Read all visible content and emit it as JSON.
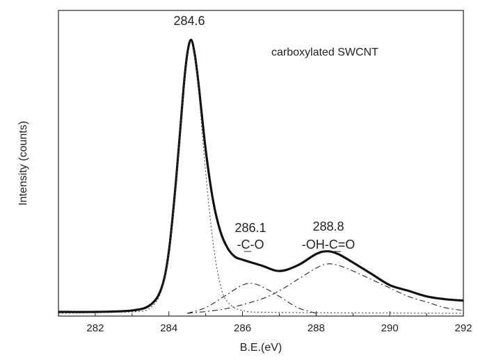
{
  "chart_data": {
    "type": "line",
    "title": "",
    "xlabel": "B.E.(eV)",
    "ylabel": "Intensity (counts)",
    "xlim": [
      281,
      292
    ],
    "ylim": [
      0,
      1.0
    ],
    "x_ticks": [
      282,
      284,
      286,
      288,
      290,
      292
    ],
    "x_tick_labels": [
      "282",
      "284",
      "286",
      "288",
      "290",
      "292"
    ],
    "y_ticks_shown": false,
    "grid": false,
    "sample_label": "carboxylated SWCNT",
    "annotations": [
      {
        "line1": "284.6",
        "line2": ""
      },
      {
        "line1": "286.1",
        "line2": "-C-O"
      },
      {
        "line1": "288.8",
        "line2": "-OH-C=O"
      }
    ],
    "series": [
      {
        "style": "solid-thick",
        "x": [
          281.0,
          282.0,
          283.0,
          283.5,
          283.8,
          284.0,
          284.2,
          284.4,
          284.5,
          284.6,
          284.7,
          284.8,
          285.0,
          285.2,
          285.4,
          285.6,
          285.8,
          286.0,
          286.5,
          287.0,
          287.5,
          288.0,
          288.3,
          288.6,
          289.0,
          289.5,
          290.0,
          290.5,
          291.0,
          291.5,
          292.0
        ],
        "y": [
          0.005,
          0.005,
          0.01,
          0.03,
          0.09,
          0.22,
          0.48,
          0.8,
          0.92,
          0.97,
          0.92,
          0.82,
          0.58,
          0.4,
          0.29,
          0.23,
          0.2,
          0.19,
          0.17,
          0.15,
          0.17,
          0.21,
          0.22,
          0.21,
          0.18,
          0.14,
          0.1,
          0.08,
          0.06,
          0.05,
          0.045
        ]
      },
      {
        "style": "dotted",
        "x": [
          281.0,
          283.0,
          283.5,
          283.8,
          284.0,
          284.2,
          284.4,
          284.5,
          284.6,
          284.7,
          284.8,
          285.0,
          285.2,
          285.4,
          285.6,
          286.0,
          287.0,
          292.0
        ],
        "y": [
          0.0,
          0.005,
          0.02,
          0.08,
          0.21,
          0.47,
          0.79,
          0.91,
          0.96,
          0.91,
          0.8,
          0.5,
          0.25,
          0.1,
          0.04,
          0.01,
          0.003,
          0.0
        ]
      },
      {
        "style": "dash-dot",
        "x": [
          284.5,
          285.0,
          285.5,
          286.0,
          286.3,
          286.6,
          287.0,
          287.5,
          288.0
        ],
        "y": [
          0.0,
          0.02,
          0.06,
          0.1,
          0.105,
          0.09,
          0.06,
          0.02,
          0.0
        ]
      },
      {
        "style": "dash-dot",
        "x": [
          284.5,
          285.5,
          286.5,
          287.0,
          287.5,
          288.0,
          288.3,
          288.6,
          289.0,
          289.5,
          290.0,
          290.5,
          291.0,
          291.5,
          292.0
        ],
        "y": [
          0.0,
          0.015,
          0.05,
          0.08,
          0.12,
          0.16,
          0.175,
          0.17,
          0.15,
          0.12,
          0.09,
          0.06,
          0.04,
          0.02,
          0.01
        ]
      }
    ]
  }
}
